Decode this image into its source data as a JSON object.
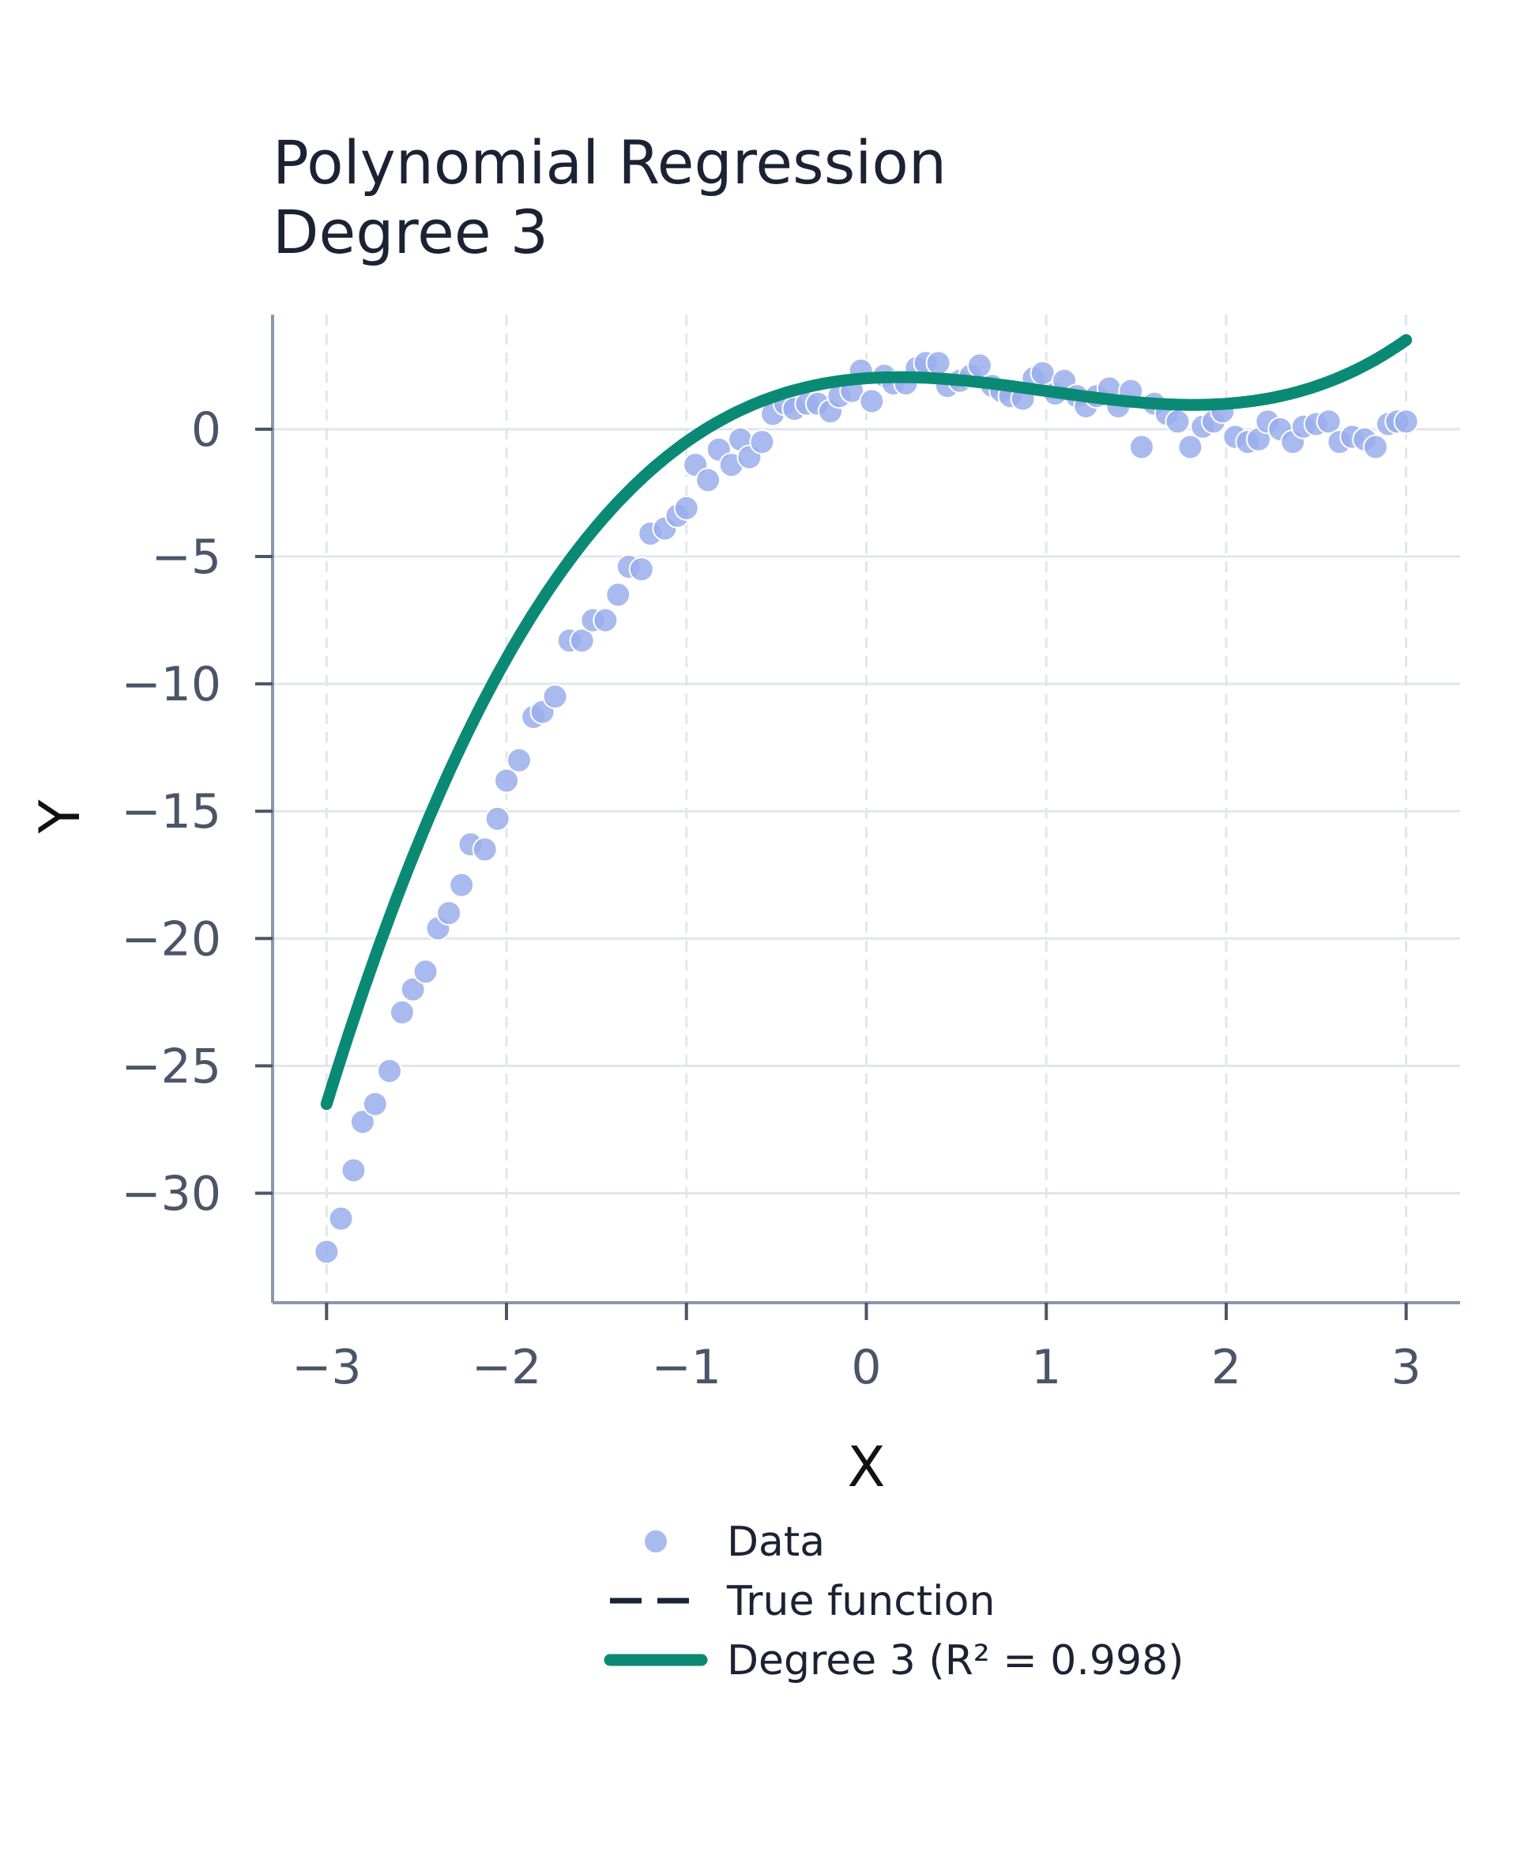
{
  "chart_data": {
    "type": "scatter",
    "title": [
      "Polynomial Regression",
      "Degree 3"
    ],
    "xlabel": "X",
    "ylabel": "Y",
    "xlim": [
      -3.3,
      3.3
    ],
    "ylim": [
      -34.3,
      4.5
    ],
    "xticks": [
      -3,
      -2,
      -1,
      0,
      1,
      2,
      3
    ],
    "yticks": [
      0,
      -5,
      -10,
      -15,
      -20,
      -25,
      -30
    ],
    "grid": true,
    "legend_position": "bottom-center",
    "series": [
      {
        "name": "Data",
        "kind": "scatter",
        "color": "#9aaeec",
        "x": [
          -3.0,
          -2.92,
          -2.85,
          -2.8,
          -2.73,
          -2.65,
          -2.58,
          -2.52,
          -2.45,
          -2.38,
          -2.32,
          -2.25,
          -2.2,
          -2.12,
          -2.05,
          -2.0,
          -1.93,
          -1.85,
          -1.8,
          -1.73,
          -1.65,
          -1.58,
          -1.52,
          -1.45,
          -1.38,
          -1.32,
          -1.25,
          -1.2,
          -1.12,
          -1.05,
          -1.0,
          -0.95,
          -0.88,
          -0.82,
          -0.75,
          -0.7,
          -0.65,
          -0.58,
          -0.52,
          -0.45,
          -0.4,
          -0.33,
          -0.27,
          -0.2,
          -0.15,
          -0.08,
          -0.03,
          0.03,
          0.1,
          0.15,
          0.22,
          0.28,
          0.33,
          0.4,
          0.45,
          0.52,
          0.58,
          0.63,
          0.7,
          0.75,
          0.8,
          0.87,
          0.93,
          0.98,
          1.05,
          1.1,
          1.17,
          1.22,
          1.28,
          1.35,
          1.4,
          1.47,
          1.53,
          1.6,
          1.67,
          1.73,
          1.8,
          1.87,
          1.93,
          1.98,
          2.05,
          2.12,
          2.18,
          2.23,
          2.3,
          2.37,
          2.43,
          2.5,
          2.57,
          2.63,
          2.7,
          2.77,
          2.83,
          2.9,
          2.95,
          3.0
        ],
        "y": [
          -32.3,
          -31.0,
          -29.1,
          -27.2,
          -26.5,
          -25.2,
          -22.9,
          -22.0,
          -21.3,
          -19.6,
          -19.0,
          -17.9,
          -16.3,
          -16.5,
          -15.3,
          -13.8,
          -13.0,
          -11.3,
          -11.1,
          -10.5,
          -8.3,
          -8.3,
          -7.5,
          -7.5,
          -6.5,
          -5.4,
          -5.5,
          -4.1,
          -3.9,
          -3.4,
          -3.1,
          -1.4,
          -2.0,
          -0.8,
          -1.4,
          -0.4,
          -1.1,
          -0.5,
          0.6,
          1.0,
          0.8,
          1.0,
          1.0,
          0.7,
          1.3,
          1.5,
          2.3,
          1.1,
          2.1,
          1.8,
          1.8,
          2.4,
          2.6,
          2.6,
          1.7,
          1.9,
          2.1,
          2.5,
          1.7,
          1.5,
          1.3,
          1.2,
          2.0,
          2.2,
          1.4,
          1.9,
          1.3,
          0.9,
          1.3,
          1.6,
          0.9,
          1.5,
          -0.7,
          1.0,
          0.6,
          0.3,
          -0.7,
          0.1,
          0.3,
          0.7,
          -0.3,
          -0.5,
          -0.4,
          0.3,
          0.0,
          -0.5,
          0.1,
          0.2,
          0.3,
          -0.5,
          -0.3,
          -0.4,
          -0.7,
          0.2,
          0.3,
          0.3
        ]
      },
      {
        "name": "True function",
        "kind": "line",
        "style": "dashed",
        "color": "#1b2233",
        "curve": {
          "type": "polynomial",
          "coefficients": [
            0.5,
            -1.5,
            0.5,
            2.0
          ]
        }
      },
      {
        "name": "Degree 3 (R² = 0.998)",
        "kind": "line",
        "style": "solid",
        "color": "#0a8a74",
        "curve": {
          "type": "polynomial",
          "coefficients": [
            0.5,
            -1.5,
            0.5,
            2.0
          ]
        }
      }
    ]
  }
}
